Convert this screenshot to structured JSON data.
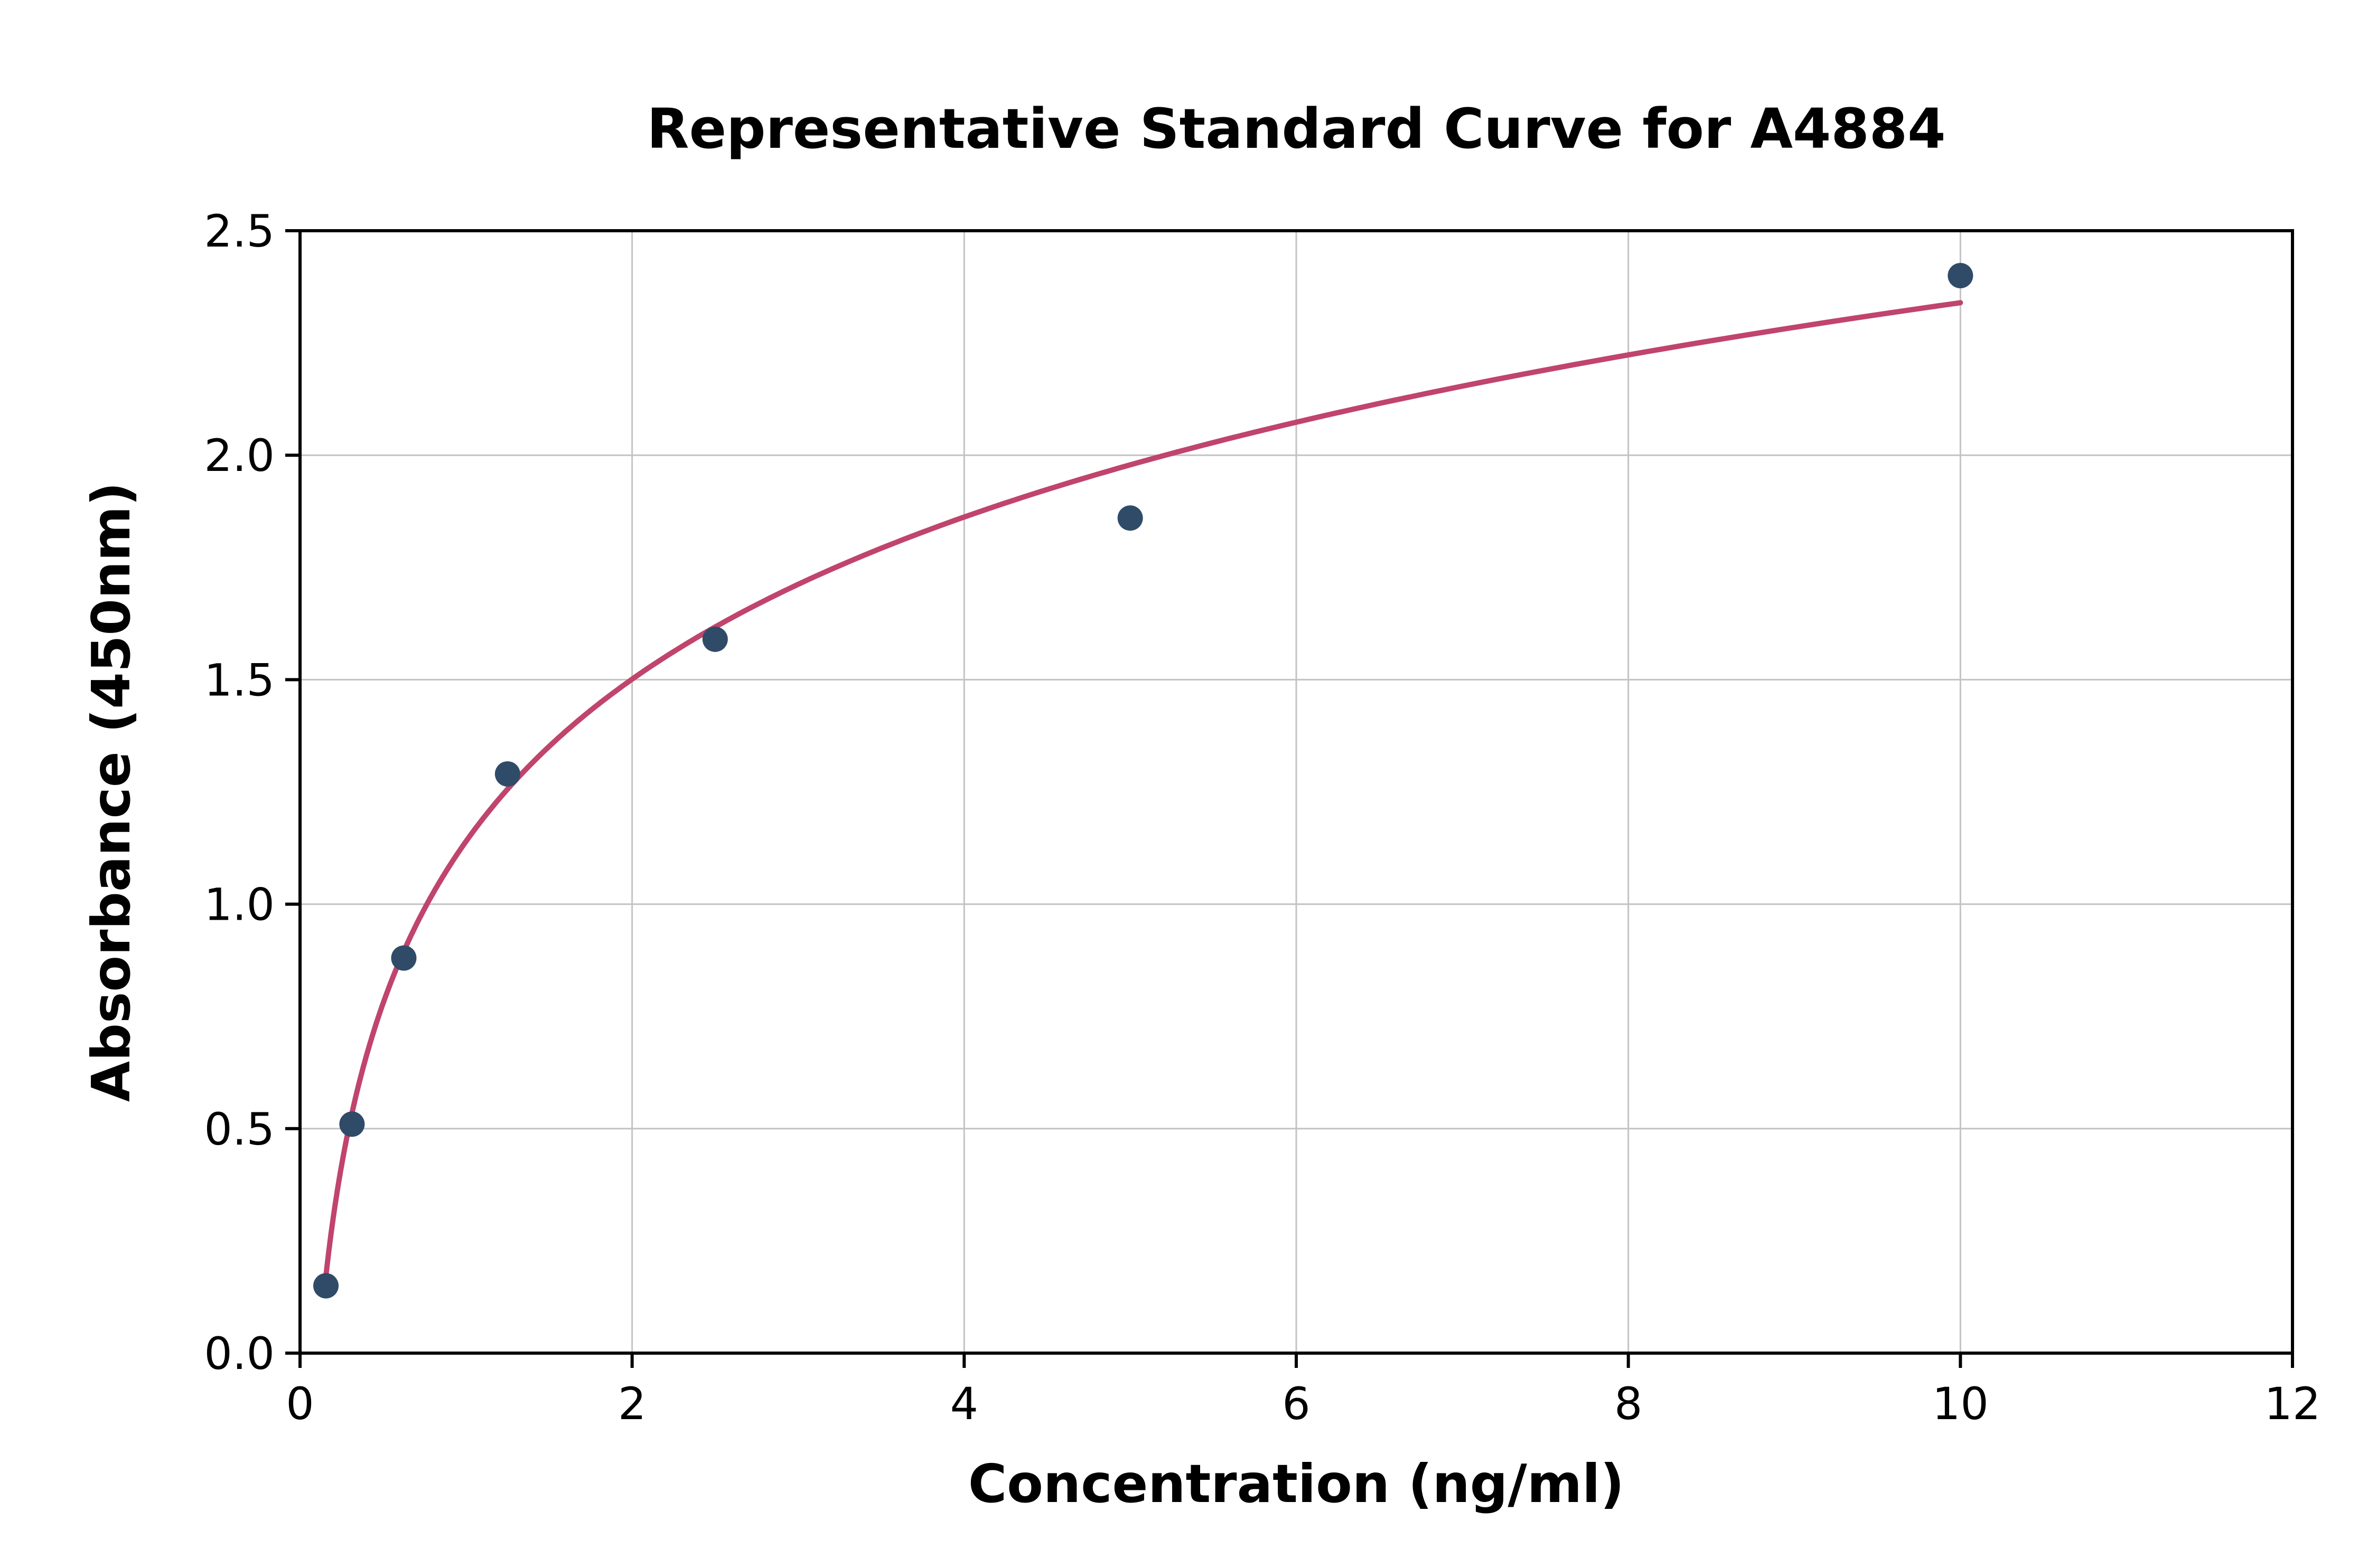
{
  "page": {
    "background": "#ffffff"
  },
  "chart_data": {
    "type": "scatter",
    "title": "Representative Standard Curve for A4884",
    "xlabel": "Concentration (ng/ml)",
    "ylabel": "Absorbance (450nm)",
    "xlim": [
      0,
      12
    ],
    "ylim": [
      0,
      2.5
    ],
    "grid": true,
    "legend_position": "none",
    "xticks": [
      {
        "value": 0,
        "label": "0"
      },
      {
        "value": 2,
        "label": "2"
      },
      {
        "value": 4,
        "label": "4"
      },
      {
        "value": 6,
        "label": "6"
      },
      {
        "value": 8,
        "label": "8"
      },
      {
        "value": 10,
        "label": "10"
      },
      {
        "value": 12,
        "label": "12"
      }
    ],
    "yticks": [
      {
        "value": 0.0,
        "label": "0.0"
      },
      {
        "value": 0.5,
        "label": "0.5"
      },
      {
        "value": 1.0,
        "label": "1.0"
      },
      {
        "value": 1.5,
        "label": "1.5"
      },
      {
        "value": 2.0,
        "label": "2.0"
      },
      {
        "value": 2.5,
        "label": "2.5"
      }
    ],
    "points": [
      {
        "x": 0.156,
        "y": 0.15
      },
      {
        "x": 0.313,
        "y": 0.51
      },
      {
        "x": 0.625,
        "y": 0.88
      },
      {
        "x": 1.25,
        "y": 1.29
      },
      {
        "x": 2.5,
        "y": 1.59
      },
      {
        "x": 5.0,
        "y": 1.86
      },
      {
        "x": 10.0,
        "y": 2.4
      }
    ],
    "fit_curve": {
      "model": "y = a*ln(x) + b",
      "a": 0.521,
      "b": 1.14,
      "x_start": 0.156,
      "x_end": 10.0
    },
    "colors": {
      "point": "#2f4b68",
      "curve": "#c0446c",
      "grid": "#c3c3c3",
      "axis": "#000000",
      "text": "#000000"
    }
  }
}
